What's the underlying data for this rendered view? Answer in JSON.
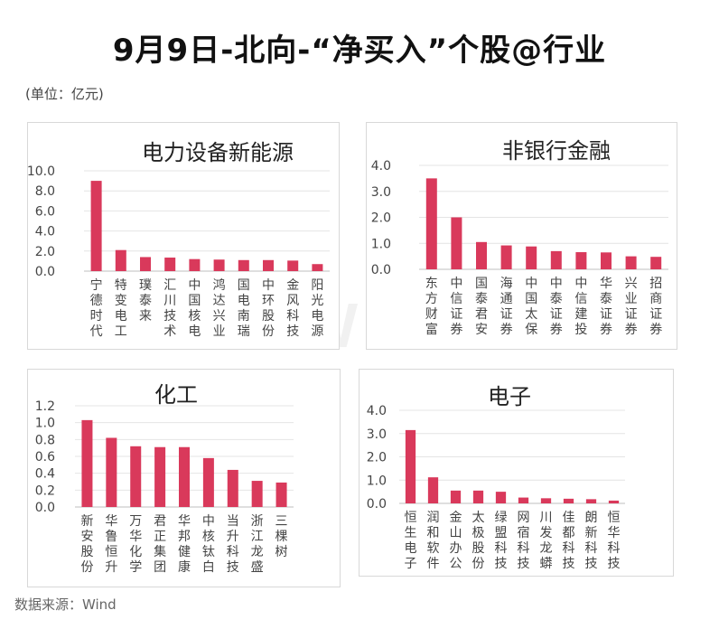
{
  "title": "9月9日-北向-“净买入”个股@行业",
  "unit_label": "(单位：亿元)",
  "source_label": "数据来源：Wind",
  "watermark": "Wind",
  "colors": {
    "bar": "#d9395b",
    "grid": "#e4e4e4",
    "axis": "#bfbfbf"
  },
  "chart_data": [
    {
      "type": "bar",
      "title": "电力设备新能源",
      "categories": [
        "宁德时代",
        "特变电工",
        "璞泰来",
        "汇川技术",
        "中国核电",
        "鸿达兴业",
        "国电南瑞",
        "中环股份",
        "金风科技",
        "阳光电源"
      ],
      "values": [
        9.0,
        2.1,
        1.4,
        1.35,
        1.2,
        1.15,
        1.1,
        1.1,
        1.05,
        0.7
      ],
      "ylim": [
        0,
        10
      ],
      "yticks": [
        "0.0",
        "2.0",
        "4.0",
        "6.0",
        "8.0",
        "10.0"
      ],
      "grid": true
    },
    {
      "type": "bar",
      "title": "非银行金融",
      "categories": [
        "东方财富",
        "中信证券",
        "国泰君安",
        "海通证券",
        "中国太保",
        "中泰证券",
        "中信建投",
        "华泰证券",
        "兴业证券",
        "招商证券"
      ],
      "values": [
        3.5,
        2.0,
        1.05,
        0.92,
        0.88,
        0.7,
        0.66,
        0.65,
        0.5,
        0.48
      ],
      "ylim": [
        0,
        4
      ],
      "yticks": [
        "0.0",
        "1.0",
        "2.0",
        "3.0",
        "4.0"
      ],
      "grid": true
    },
    {
      "type": "bar",
      "title": "化工",
      "categories": [
        "新安股份",
        "华鲁恒升",
        "万华化学",
        "君正集团",
        "华邦健康",
        "中核钛白",
        "当升科技",
        "浙江龙盛",
        "三棵树"
      ],
      "values": [
        1.03,
        0.82,
        0.72,
        0.71,
        0.71,
        0.58,
        0.44,
        0.31,
        0.29
      ],
      "ylim": [
        0,
        1.2
      ],
      "yticks": [
        "0.0",
        "0.2",
        "0.4",
        "0.6",
        "0.8",
        "1.0",
        "1.2"
      ],
      "grid": true
    },
    {
      "type": "bar",
      "title": "电子",
      "categories": [
        "恒生电子",
        "润和软件",
        "金山办公",
        "太极股份",
        "绿盟科技",
        "网宿科技",
        "川发龙蟒",
        "佳都科技",
        "朗新科技",
        "恒华科技"
      ],
      "values": [
        3.15,
        1.12,
        0.55,
        0.55,
        0.5,
        0.25,
        0.22,
        0.2,
        0.18,
        0.12
      ],
      "ylim": [
        0,
        4
      ],
      "yticks": [
        "0.0",
        "1.0",
        "2.0",
        "3.0",
        "4.0"
      ],
      "grid": true
    }
  ]
}
